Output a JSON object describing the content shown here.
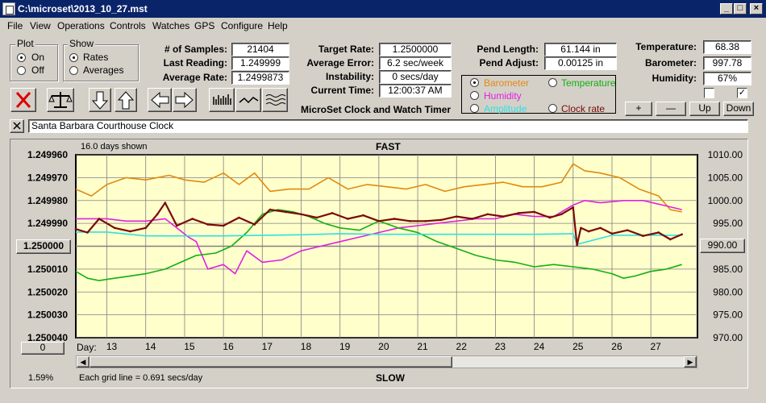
{
  "window": {
    "title": "C:\\microset\\2013_10_27.mst"
  },
  "menu": [
    "File",
    "View",
    "Operations",
    "Controls",
    "Watches",
    "GPS",
    "Configure",
    "Help"
  ],
  "plot_group": {
    "title": "Plot",
    "on": "On",
    "off": "Off",
    "selected": "On"
  },
  "show_group": {
    "title": "Show",
    "rates": "Rates",
    "averages": "Averages",
    "selected": "Rates"
  },
  "stats": {
    "samples_label": "# of Samples:",
    "samples": "21404",
    "last_label": "Last Reading:",
    "last": "1.249999",
    "avg_label": "Average Rate:",
    "avg": "1.2499873"
  },
  "rates": {
    "target_label": "Target Rate:",
    "target": "1.2500000",
    "error_label": "Average Error:",
    "error": "6.2 sec/week",
    "instab_label": "Instability:",
    "instab": "0 secs/day",
    "time_label": "Current Time:",
    "time": "12:00:37 AM"
  },
  "app_name": "MicroSet Clock and Watch Timer",
  "pendulum": {
    "length_label": "Pend Length:",
    "length": "61.144 in",
    "adjust_label": "Pend Adjust:",
    "adjust": "0.00125 in"
  },
  "series_select": {
    "barometer": "Barometer",
    "temperature": "Temperature",
    "humidity": "Humidity",
    "amplitude": "Amplitude",
    "clock_rate": "Clock rate",
    "selected": "Barometer"
  },
  "environment": {
    "temp_label": "Temperature:",
    "temp": "68.38",
    "baro_label": "Barometer:",
    "baro": "997.78",
    "hum_label": "Humidity:",
    "hum": "67%"
  },
  "adjust_buttons": {
    "plus": "+",
    "minus": "—",
    "up": "Up",
    "down": "Down"
  },
  "clock_name": "Santa Barbara Courthouse Clock",
  "graph": {
    "days_shown": "16.0 days shown",
    "fast": "FAST",
    "slow": "SLOW",
    "percent": "1.59%",
    "grid_note": "Each grid line = 0.691 secs/day",
    "left_button": "1.250000",
    "right_button": "990.00",
    "zero_button": "0",
    "day_label": "Day:"
  },
  "colors": {
    "plot_bg": "#ffffcc",
    "barometer": "#e08a10",
    "humidity": "#e020e0",
    "temperature": "#10b010",
    "amplitude": "#30e0e0",
    "clock_rate": "#7a0a0a"
  },
  "chart_data": {
    "type": "line",
    "title": "FAST",
    "xlabel": "Day:",
    "x_ticks": [
      "13",
      "14",
      "15",
      "16",
      "17",
      "18",
      "19",
      "20",
      "21",
      "22",
      "23",
      "24",
      "25",
      "26",
      "27"
    ],
    "xlim": [
      12.2,
      28.2
    ],
    "left_axis": {
      "ticks": [
        "1.249960",
        "1.249970",
        "1.249980",
        "1.249990",
        "1.250000",
        "1.250010",
        "1.250020",
        "1.250030",
        "1.250040"
      ],
      "ylim": [
        1.24996,
        1.25004
      ],
      "inverted": true
    },
    "right_axis": {
      "ticks": [
        "1010.00",
        "1005.00",
        "1000.00",
        "995.00",
        "990.00",
        "985.00",
        "980.00",
        "975.00",
        "970.00"
      ],
      "ylim": [
        970,
        1010
      ]
    },
    "series": [
      {
        "name": "Barometer",
        "axis": "right",
        "color": "#e08a10",
        "x": [
          12.2,
          12.6,
          13.0,
          13.5,
          14.0,
          14.6,
          15.0,
          15.5,
          16.0,
          16.4,
          16.8,
          17.2,
          17.7,
          18.2,
          18.7,
          19.2,
          19.7,
          20.2,
          20.7,
          21.2,
          21.7,
          22.2,
          22.7,
          23.2,
          23.7,
          24.2,
          24.7,
          25.0,
          25.3,
          25.7,
          26.2,
          26.7,
          27.2,
          27.5,
          27.8
        ],
        "y": [
          1002.5,
          1001.0,
          1003.5,
          1005.0,
          1004.5,
          1005.5,
          1004.5,
          1004.0,
          1006.0,
          1003.5,
          1006.0,
          1002.0,
          1002.5,
          1002.5,
          1005.0,
          1002.5,
          1003.5,
          1003.0,
          1002.5,
          1003.5,
          1002.0,
          1003.0,
          1003.5,
          1004.0,
          1003.0,
          1003.0,
          1004.0,
          1008.0,
          1006.5,
          1006.0,
          1005.0,
          1002.5,
          1001.0,
          998.0,
          997.5
        ]
      },
      {
        "name": "Humidity",
        "axis": "right",
        "color": "#e020e0",
        "x": [
          12.2,
          12.6,
          13.0,
          13.5,
          14.0,
          14.5,
          14.8,
          15.1,
          15.3,
          15.6,
          16.0,
          16.3,
          16.6,
          17.0,
          17.5,
          18.0,
          18.5,
          19.0,
          19.5,
          20.0,
          20.5,
          21.0,
          21.5,
          22.0,
          22.5,
          23.0,
          23.5,
          24.0,
          24.5,
          25.0,
          25.3,
          25.7,
          26.3,
          26.8,
          27.3,
          27.8
        ],
        "y": [
          996.0,
          996.0,
          996.0,
          995.5,
          995.5,
          996.0,
          994.0,
          992.0,
          991.0,
          985.0,
          986.0,
          984.0,
          989.0,
          986.5,
          987.0,
          989.0,
          990.0,
          991.0,
          992.0,
          993.0,
          994.0,
          994.5,
          995.0,
          995.5,
          996.0,
          996.0,
          997.0,
          996.5,
          996.5,
          999.0,
          1000.0,
          999.5,
          1000.0,
          1000.0,
          999.0,
          998.0
        ]
      },
      {
        "name": "Temperature",
        "axis": "right",
        "color": "#10b010",
        "x": [
          12.2,
          12.5,
          12.8,
          13.2,
          13.6,
          14.0,
          14.5,
          14.9,
          15.3,
          15.8,
          16.2,
          16.6,
          17.0,
          17.4,
          17.8,
          18.2,
          18.6,
          19.0,
          19.5,
          20.0,
          20.5,
          21.0,
          21.5,
          22.0,
          22.5,
          23.0,
          23.5,
          24.0,
          24.5,
          25.0,
          25.5,
          26.0,
          26.3,
          26.6,
          27.0,
          27.4,
          27.8
        ],
        "y": [
          984.5,
          983.0,
          982.5,
          983.0,
          983.5,
          984.0,
          985.0,
          986.5,
          988.0,
          988.5,
          990.0,
          993.0,
          997.0,
          998.0,
          997.5,
          996.5,
          995.0,
          994.0,
          993.5,
          995.5,
          994.0,
          993.0,
          991.0,
          989.5,
          988.0,
          987.0,
          986.5,
          985.5,
          986.0,
          985.5,
          985.0,
          984.0,
          983.0,
          983.5,
          984.5,
          985.0,
          986.0
        ]
      },
      {
        "name": "Amplitude",
        "axis": "left",
        "color": "#30e0e0",
        "x": [
          12.2,
          13.0,
          14.0,
          15.0,
          16.0,
          17.0,
          18.0,
          19.0,
          20.0,
          21.0,
          22.0,
          23.0,
          24.0,
          25.0,
          25.1,
          26.0,
          27.0,
          27.8
        ],
        "y": [
          1.2499938,
          1.2499938,
          1.2499955,
          1.2499955,
          1.2499955,
          1.2499952,
          1.249995,
          1.2499945,
          1.2499948,
          1.2499948,
          1.2499948,
          1.2499948,
          1.2499948,
          1.2499945,
          1.2499992,
          1.2499952,
          1.2499952,
          1.2499952
        ]
      },
      {
        "name": "Clock rate",
        "axis": "left",
        "color": "#7a0a0a",
        "x": [
          12.2,
          12.5,
          12.8,
          13.2,
          13.6,
          14.0,
          14.3,
          14.5,
          14.8,
          15.2,
          15.6,
          16.0,
          16.4,
          16.8,
          17.2,
          17.6,
          18.0,
          18.4,
          18.8,
          19.2,
          19.6,
          20.0,
          20.4,
          20.8,
          21.2,
          21.6,
          22.0,
          22.4,
          22.8,
          23.2,
          23.6,
          24.0,
          24.4,
          24.7,
          25.0,
          25.1,
          25.2,
          25.4,
          25.7,
          26.0,
          26.4,
          26.8,
          27.2,
          27.5,
          27.8
        ],
        "y": [
          1.2499925,
          1.249994,
          1.249988,
          1.249992,
          1.2499935,
          1.249992,
          1.249986,
          1.249981,
          1.249991,
          1.249988,
          1.2499905,
          1.249991,
          1.2499875,
          1.2499905,
          1.249984,
          1.249985,
          1.249986,
          1.2499875,
          1.2499855,
          1.249988,
          1.2499865,
          1.249989,
          1.249988,
          1.249989,
          1.249989,
          1.2499885,
          1.249987,
          1.249988,
          1.249986,
          1.249987,
          1.2499855,
          1.249985,
          1.2499875,
          1.249986,
          1.249983,
          1.2499995,
          1.249992,
          1.2499935,
          1.249992,
          1.2499945,
          1.249993,
          1.2499955,
          1.249994,
          1.249997,
          1.2499948
        ]
      }
    ]
  }
}
